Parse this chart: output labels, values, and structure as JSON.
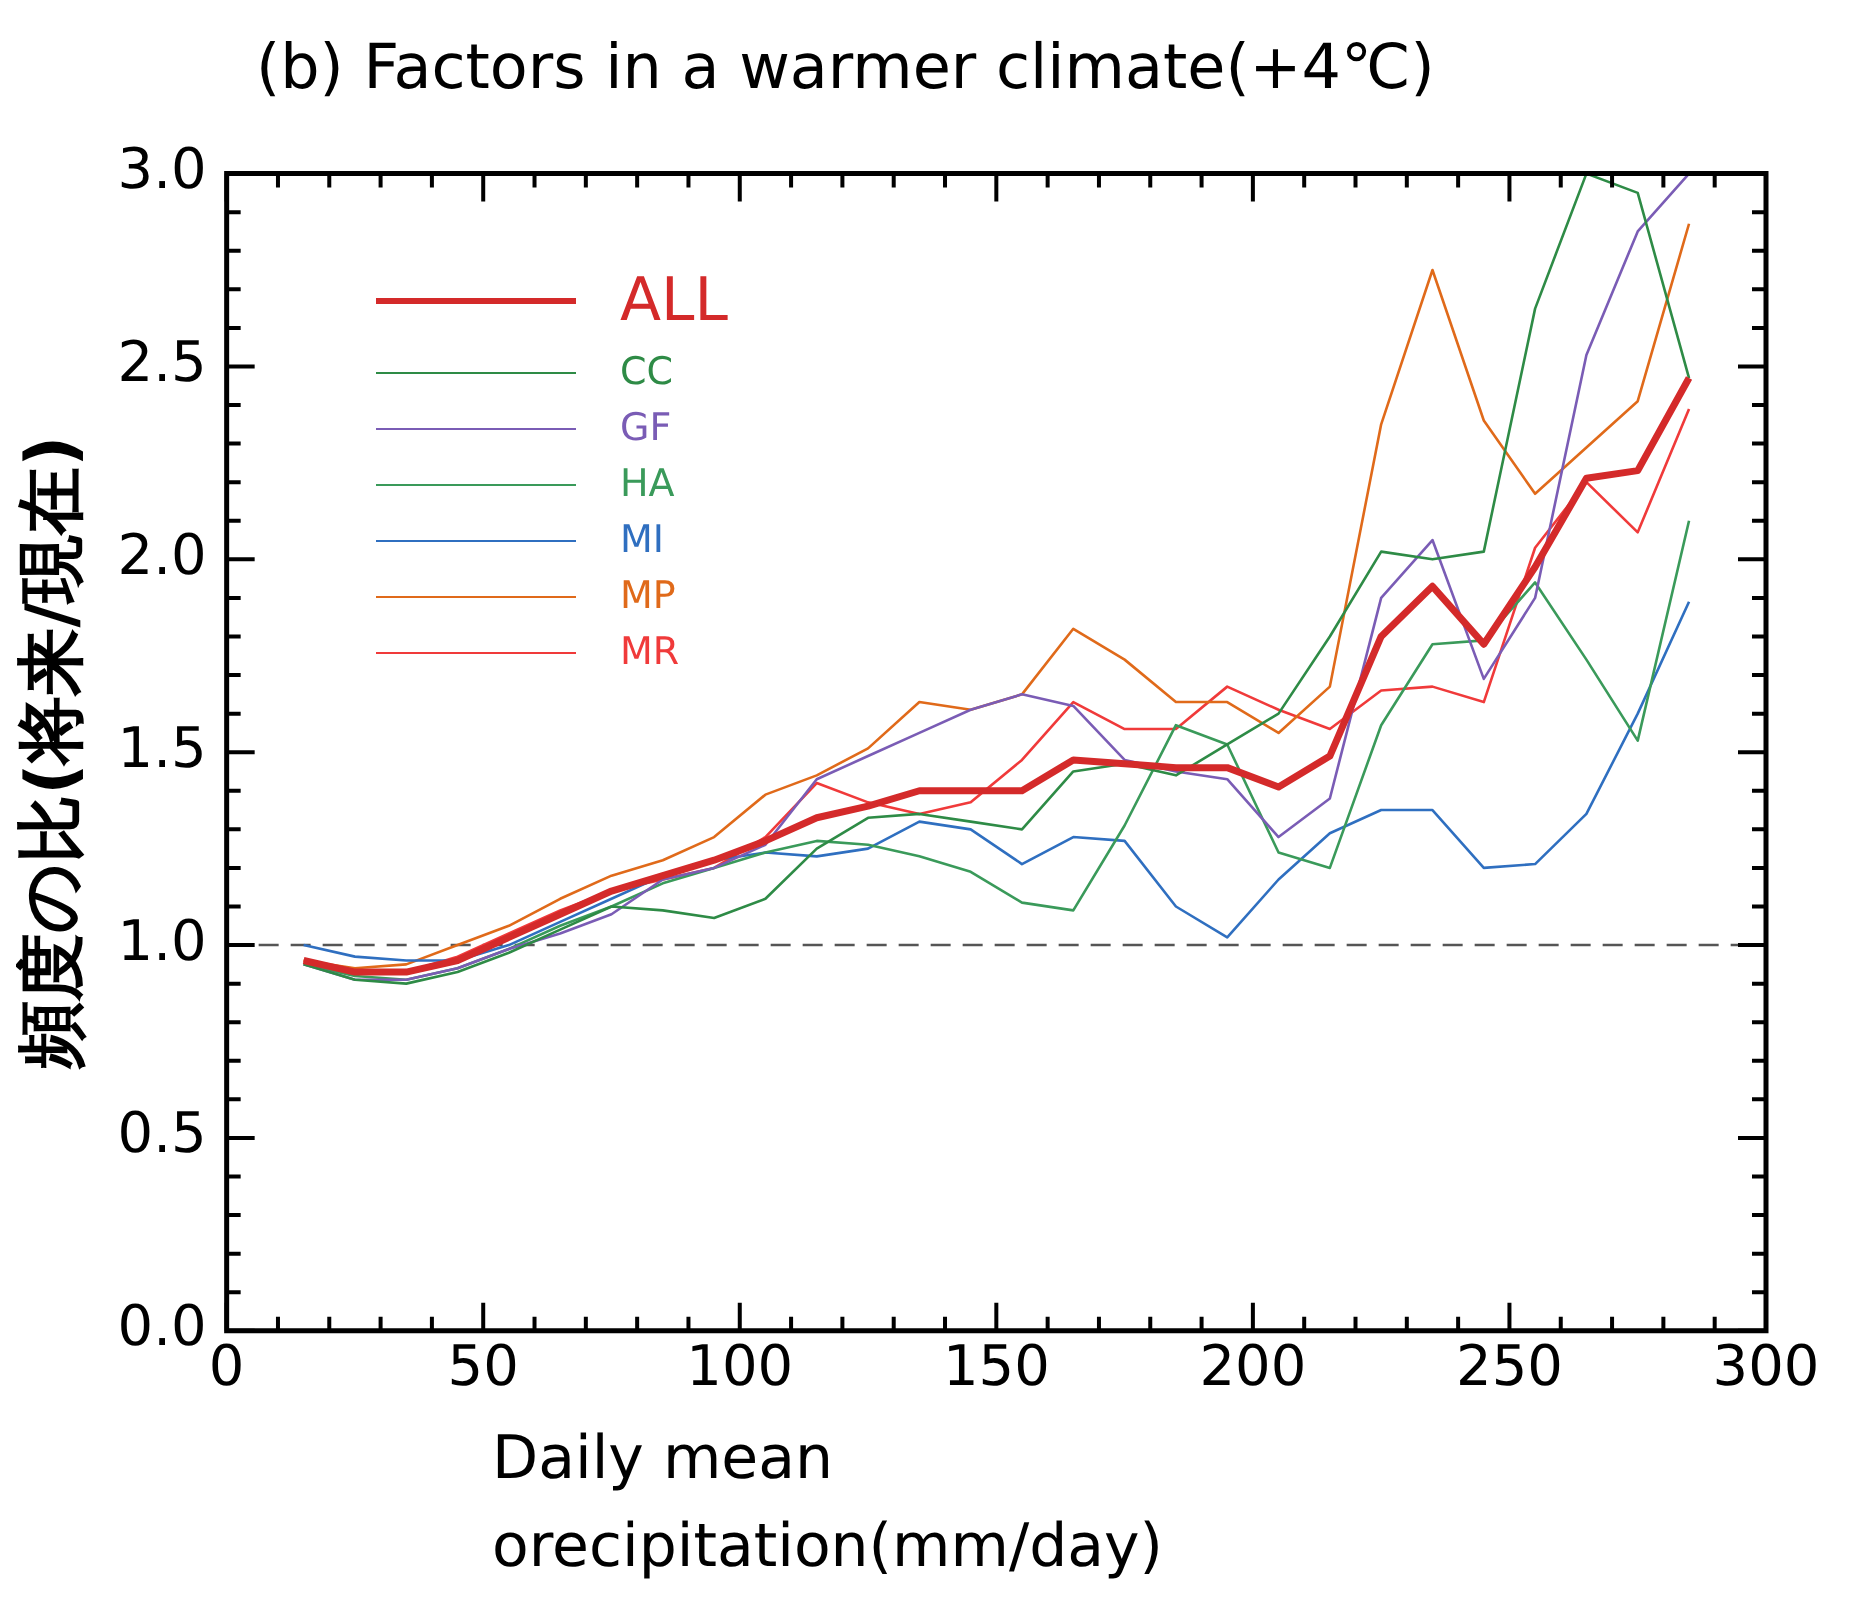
{
  "chart_data": {
    "type": "line",
    "title": "(b) Factors in a warmer climate(+4℃)",
    "xlabel": "Daily mean orecipitation(mm/day)",
    "ylabel": "頻度の比(将来/現在)",
    "x": [
      15,
      25,
      35,
      45,
      55,
      65,
      75,
      85,
      95,
      105,
      115,
      125,
      135,
      145,
      155,
      165,
      175,
      185,
      195,
      205,
      215,
      225,
      235,
      245,
      255,
      265,
      275,
      285
    ],
    "series": [
      {
        "name": "ALL",
        "color": "#d42a2a",
        "values": [
          0.96,
          0.93,
          0.93,
          0.96,
          1.02,
          1.08,
          1.14,
          1.18,
          1.22,
          1.27,
          1.33,
          1.36,
          1.4,
          1.4,
          1.4,
          1.48,
          1.47,
          1.46,
          1.46,
          1.41,
          1.49,
          1.8,
          1.93,
          1.78,
          1.98,
          2.21,
          2.23,
          2.47
        ]
      },
      {
        "name": "CC",
        "color": "#2e8b46",
        "values": [
          0.95,
          0.91,
          0.9,
          0.93,
          0.98,
          1.04,
          1.1,
          1.09,
          1.07,
          1.12,
          1.25,
          1.33,
          1.34,
          1.32,
          1.3,
          1.45,
          1.47,
          1.44,
          1.52,
          1.6,
          1.8,
          2.02,
          2.0,
          2.02,
          2.65,
          3.0,
          2.95,
          2.47
        ]
      },
      {
        "name": "GF",
        "color": "#7a5cb5",
        "values": [
          0.95,
          0.91,
          0.91,
          0.94,
          0.99,
          1.03,
          1.08,
          1.17,
          1.2,
          1.26,
          1.43,
          1.49,
          1.55,
          1.61,
          1.65,
          1.62,
          1.48,
          1.45,
          1.43,
          1.28,
          1.38,
          1.9,
          2.05,
          1.69,
          1.9,
          2.53,
          2.85,
          3.0
        ]
      },
      {
        "name": "HA",
        "color": "#3a9a5a",
        "values": [
          0.95,
          0.92,
          0.91,
          0.94,
          0.99,
          1.05,
          1.1,
          1.16,
          1.2,
          1.24,
          1.27,
          1.26,
          1.23,
          1.19,
          1.11,
          1.09,
          1.31,
          1.57,
          1.52,
          1.24,
          1.2,
          1.57,
          1.78,
          1.79,
          1.94,
          1.74,
          1.53,
          2.1
        ]
      },
      {
        "name": "MI",
        "color": "#2f6fc0",
        "values": [
          1.0,
          0.97,
          0.96,
          0.96,
          1.0,
          1.06,
          1.12,
          1.18,
          1.22,
          1.24,
          1.23,
          1.25,
          1.32,
          1.3,
          1.21,
          1.28,
          1.27,
          1.1,
          1.02,
          1.17,
          1.29,
          1.35,
          1.35,
          1.2,
          1.21,
          1.34,
          1.6,
          1.89
        ]
      },
      {
        "name": "MP",
        "color": "#e06a1a",
        "values": [
          0.96,
          0.94,
          0.95,
          1.0,
          1.05,
          1.12,
          1.18,
          1.22,
          1.28,
          1.39,
          1.44,
          1.51,
          1.63,
          1.61,
          1.65,
          1.82,
          1.74,
          1.63,
          1.63,
          1.55,
          1.67,
          2.35,
          2.75,
          2.36,
          2.17,
          2.29,
          2.41,
          2.87
        ]
      },
      {
        "name": "MR",
        "color": "#f03a3a",
        "values": [
          0.96,
          0.93,
          0.93,
          0.97,
          1.03,
          1.09,
          1.14,
          1.17,
          1.2,
          1.28,
          1.42,
          1.37,
          1.34,
          1.37,
          1.48,
          1.63,
          1.56,
          1.56,
          1.67,
          1.61,
          1.56,
          1.66,
          1.67,
          1.63,
          2.03,
          2.2,
          2.07,
          2.39
        ]
      }
    ],
    "xlim": [
      0,
      300
    ],
    "xticks": [
      0,
      {
        "value": 10,
        "label": null
      },
      {
        "value": 20,
        "label": null
      },
      {
        "value": 30,
        "label": null
      },
      {
        "value": 40,
        "label": null
      },
      50,
      {
        "value": 60,
        "label": null
      },
      {
        "value": 70,
        "label": null
      },
      {
        "value": 80,
        "label": null
      },
      {
        "value": 90,
        "label": null
      },
      100,
      {
        "value": 110,
        "label": null
      },
      {
        "value": 120,
        "label": null
      },
      {
        "value": 130,
        "label": null
      },
      {
        "value": 140,
        "label": null
      },
      150,
      {
        "value": 160,
        "label": null
      },
      {
        "value": 170,
        "label": null
      },
      {
        "value": 180,
        "label": null
      },
      {
        "value": 190,
        "label": null
      },
      200,
      {
        "value": 210,
        "label": null
      },
      {
        "value": 220,
        "label": null
      },
      {
        "value": 230,
        "label": null
      },
      {
        "value": 240,
        "label": null
      },
      250,
      {
        "value": 260,
        "label": null
      },
      {
        "value": 270,
        "label": null
      },
      {
        "value": 280,
        "label": null
      },
      {
        "value": 290,
        "label": null
      },
      300
    ],
    "ylim": [
      0,
      3
    ],
    "yticks": [
      {
        "value": 0,
        "label": "0.0"
      },
      {
        "value": 0.1,
        "label": null
      },
      {
        "value": 0.2,
        "label": null
      },
      {
        "value": 0.3,
        "label": null
      },
      {
        "value": 0.4,
        "label": null
      },
      0.5,
      {
        "value": 0.6,
        "label": null
      },
      {
        "value": 0.7,
        "label": null
      },
      {
        "value": 0.8,
        "label": null
      },
      {
        "value": 0.9,
        "label": null
      },
      {
        "value": 1,
        "label": "1.0"
      },
      {
        "value": 1.1,
        "label": null
      },
      {
        "value": 1.2,
        "label": null
      },
      {
        "value": 1.3,
        "label": null
      },
      {
        "value": 1.4,
        "label": null
      },
      1.5,
      {
        "value": 1.6,
        "label": null
      },
      {
        "value": 1.7,
        "label": null
      },
      {
        "value": 1.8,
        "label": null
      },
      {
        "value": 1.9,
        "label": null
      },
      {
        "value": 2,
        "label": "2.0"
      },
      {
        "value": 2.1,
        "label": null
      },
      {
        "value": 2.2,
        "label": null
      },
      {
        "value": 2.3,
        "label": null
      },
      {
        "value": 2.4,
        "label": null
      },
      2.5,
      {
        "value": 2.6,
        "label": null
      },
      {
        "value": 2.7,
        "label": null
      },
      {
        "value": 2.8,
        "label": null
      },
      {
        "value": 2.9,
        "label": null
      },
      {
        "value": 3,
        "label": "3.0"
      }
    ],
    "ref_lines": [
      {
        "axis": "y",
        "value": 1,
        "color": "#555555",
        "line_style": "dashed"
      }
    ],
    "grid": false,
    "legend": "top left",
    "marker": "none",
    "line_style": "solid"
  }
}
